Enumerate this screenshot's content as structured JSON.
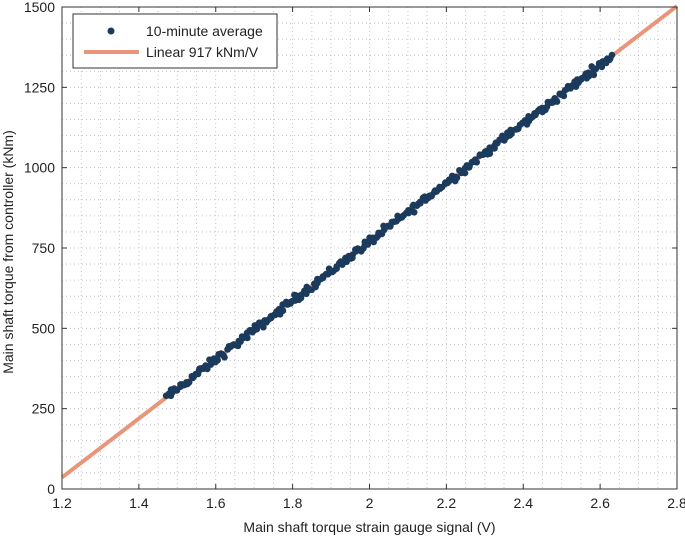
{
  "chart_data": {
    "type": "scatter",
    "xlabel": "Main shaft torque strain gauge signal (V)",
    "ylabel": "Main shaft torque from controller (kNm)",
    "xlim": [
      1.2,
      2.8
    ],
    "ylim": [
      0,
      1500
    ],
    "x_ticks": [
      "1.2",
      "1.4",
      "1.6",
      "1.8",
      "2",
      "2.2",
      "2.4",
      "2.6",
      "2.8"
    ],
    "y_ticks": [
      "0",
      "250",
      "500",
      "750",
      "1000",
      "1250",
      "1500"
    ],
    "grid": true,
    "legend_position": "top-left",
    "series": [
      {
        "name": "10-minute average",
        "kind": "points",
        "color": "#1b3a5c",
        "x_range": [
          1.47,
          2.63
        ],
        "count": 300,
        "noise_kNm": 8,
        "slope_kNm_per_V": 917,
        "intercept_kNm": -1064
      },
      {
        "name": "Linear 917 kNm/V",
        "kind": "line",
        "color": "#e8957a",
        "x": [
          1.2,
          2.8
        ],
        "y": [
          36,
          1503
        ]
      }
    ]
  }
}
